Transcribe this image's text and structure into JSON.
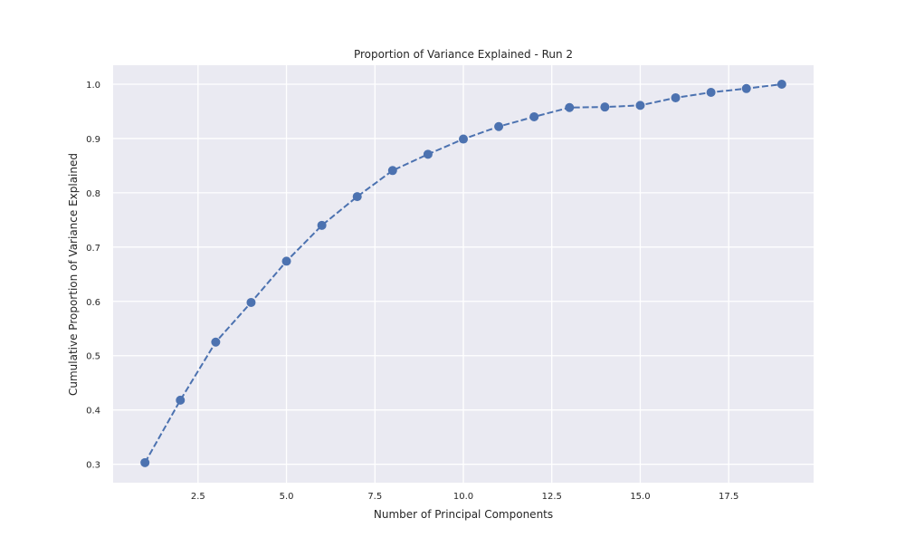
{
  "chart_data": {
    "type": "line",
    "title": "Proportion of Variance Explained - Run 2",
    "xlabel": "Number of Principal Components",
    "ylabel": "Cumulative Proportion of Variance Explained",
    "xlim": [
      0.1,
      19.9
    ],
    "ylim": [
      0.266,
      1.035
    ],
    "xticks": [
      2.5,
      5.0,
      7.5,
      10.0,
      12.5,
      15.0,
      17.5
    ],
    "xtick_labels": [
      "2.5",
      "5.0",
      "7.5",
      "10.0",
      "12.5",
      "15.0",
      "17.5"
    ],
    "yticks": [
      0.3,
      0.4,
      0.5,
      0.6,
      0.7,
      0.8,
      0.9,
      1.0
    ],
    "ytick_labels": [
      "0.3",
      "0.4",
      "0.5",
      "0.6",
      "0.7",
      "0.8",
      "0.9",
      "1.0"
    ],
    "grid": true,
    "series": [
      {
        "x": [
          1,
          2,
          3,
          4,
          5,
          6,
          7,
          8,
          9,
          10,
          11,
          12,
          13,
          14,
          15,
          16,
          17,
          18,
          19
        ],
        "y": [
          0.303,
          0.418,
          0.525,
          0.598,
          0.674,
          0.74,
          0.793,
          0.841,
          0.871,
          0.899,
          0.922,
          0.94,
          0.957,
          0.958,
          0.961,
          0.975,
          0.985,
          0.992,
          1.0
        ],
        "color": "#4c72b0",
        "linestyle": "dashed",
        "marker": "circle"
      }
    ],
    "colors": {
      "plot_background": "#eaeaf2",
      "grid": "#ffffff",
      "text": "#262626"
    }
  }
}
